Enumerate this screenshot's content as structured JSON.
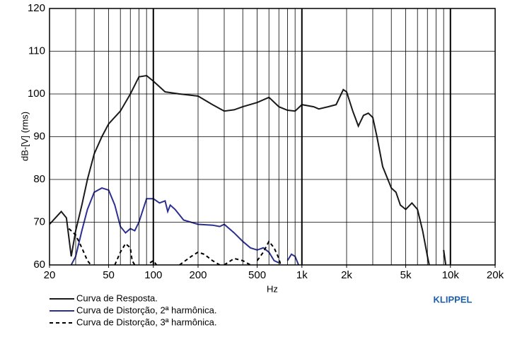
{
  "chart_data": {
    "type": "line",
    "xlabel": "Hz",
    "ylabel": "dB-[V] (rms)",
    "brand": "KLIPPEL",
    "log_x": true,
    "xlim": [
      20,
      20000
    ],
    "ylim": [
      60,
      120
    ],
    "xticks": [
      20,
      50,
      100,
      200,
      500,
      {
        "value": 1000,
        "label": "1k"
      },
      {
        "value": 2000,
        "label": "2k"
      },
      {
        "value": 5000,
        "label": "5k"
      },
      {
        "value": 10000,
        "label": "10k"
      },
      {
        "value": 20000,
        "label": "20k"
      }
    ],
    "yticks": [
      60,
      70,
      80,
      90,
      100,
      110,
      120
    ],
    "xgrid": [
      30,
      40,
      50,
      60,
      70,
      80,
      90,
      100,
      200,
      300,
      400,
      500,
      600,
      700,
      800,
      900,
      1000,
      2000,
      3000,
      4000,
      5000,
      6000,
      7000,
      8000,
      9000,
      10000
    ],
    "grid": true,
    "series": [
      {
        "name": "Curva de Resposta.",
        "color": "#1a1a1a",
        "dash": "solid",
        "x": [
          20,
          24,
          26,
          28,
          30,
          33,
          36,
          40,
          45,
          50,
          60,
          70,
          80,
          90,
          100,
          120,
          150,
          200,
          250,
          300,
          350,
          400,
          500,
          600,
          700,
          800,
          900,
          1000,
          1200,
          1300,
          1500,
          1700,
          1900,
          2000,
          2200,
          2400,
          2600,
          2800,
          3000,
          3200,
          3500,
          4000,
          4300,
          4600,
          5000,
          5500,
          6000,
          6500,
          7000,
          7200,
          8800,
          9000,
          9300
        ],
        "values": [
          69.5,
          72.5,
          71,
          62,
          68,
          74,
          80,
          86,
          90,
          93,
          96,
          100,
          104,
          104.3,
          103,
          100.5,
          100,
          99.5,
          97.5,
          96,
          96.3,
          97,
          98,
          99.2,
          97,
          96.2,
          96,
          97.5,
          97,
          96.5,
          97,
          97.5,
          101,
          100.5,
          96,
          92.5,
          95,
          95.5,
          94.5,
          90,
          83,
          78,
          77,
          74,
          73,
          74.5,
          73,
          68,
          62,
          60,
          null,
          63.5,
          60
        ]
      },
      {
        "name": "Curva de Distorção, 2ª harmônica.",
        "color": "#2b2f8f",
        "dash": "solid",
        "x": [
          28,
          30,
          33,
          36,
          40,
          45,
          50,
          55,
          60,
          65,
          70,
          75,
          80,
          90,
          100,
          110,
          120,
          125,
          130,
          140,
          160,
          200,
          250,
          280,
          300,
          350,
          400,
          450,
          500,
          550,
          600,
          650,
          700,
          750,
          800,
          850,
          900,
          950
        ],
        "values": [
          60,
          62,
          68,
          73,
          77,
          78,
          77.5,
          74,
          69,
          67.5,
          68.5,
          68,
          70,
          75.5,
          75.5,
          74.5,
          75,
          72.5,
          74,
          73,
          70.5,
          69.5,
          69.3,
          69,
          69.5,
          67.5,
          65.5,
          64,
          63.5,
          64,
          63,
          61,
          60.5,
          null,
          61,
          62.5,
          62,
          60
        ]
      },
      {
        "name": "Curva de Distorção, 3ª harmônica.",
        "color": "#000000",
        "dash": "dashed",
        "x": [
          27,
          30,
          33,
          36,
          38,
          50,
          55,
          60,
          65,
          70,
          72,
          75,
          90,
          95,
          100,
          105,
          140,
          150,
          180,
          200,
          220,
          250,
          280,
          290,
          300,
          350,
          400,
          450,
          480,
          500,
          550,
          600,
          650,
          700,
          720
        ],
        "values": [
          68.5,
          67,
          64,
          61,
          60,
          null,
          60,
          63,
          65,
          64,
          61,
          60,
          null,
          60.5,
          61,
          60,
          null,
          60,
          62,
          63,
          62.5,
          61,
          60,
          null,
          60,
          61.5,
          61,
          60,
          null,
          61,
          63,
          65.5,
          64,
          61.5,
          60
        ]
      }
    ]
  }
}
